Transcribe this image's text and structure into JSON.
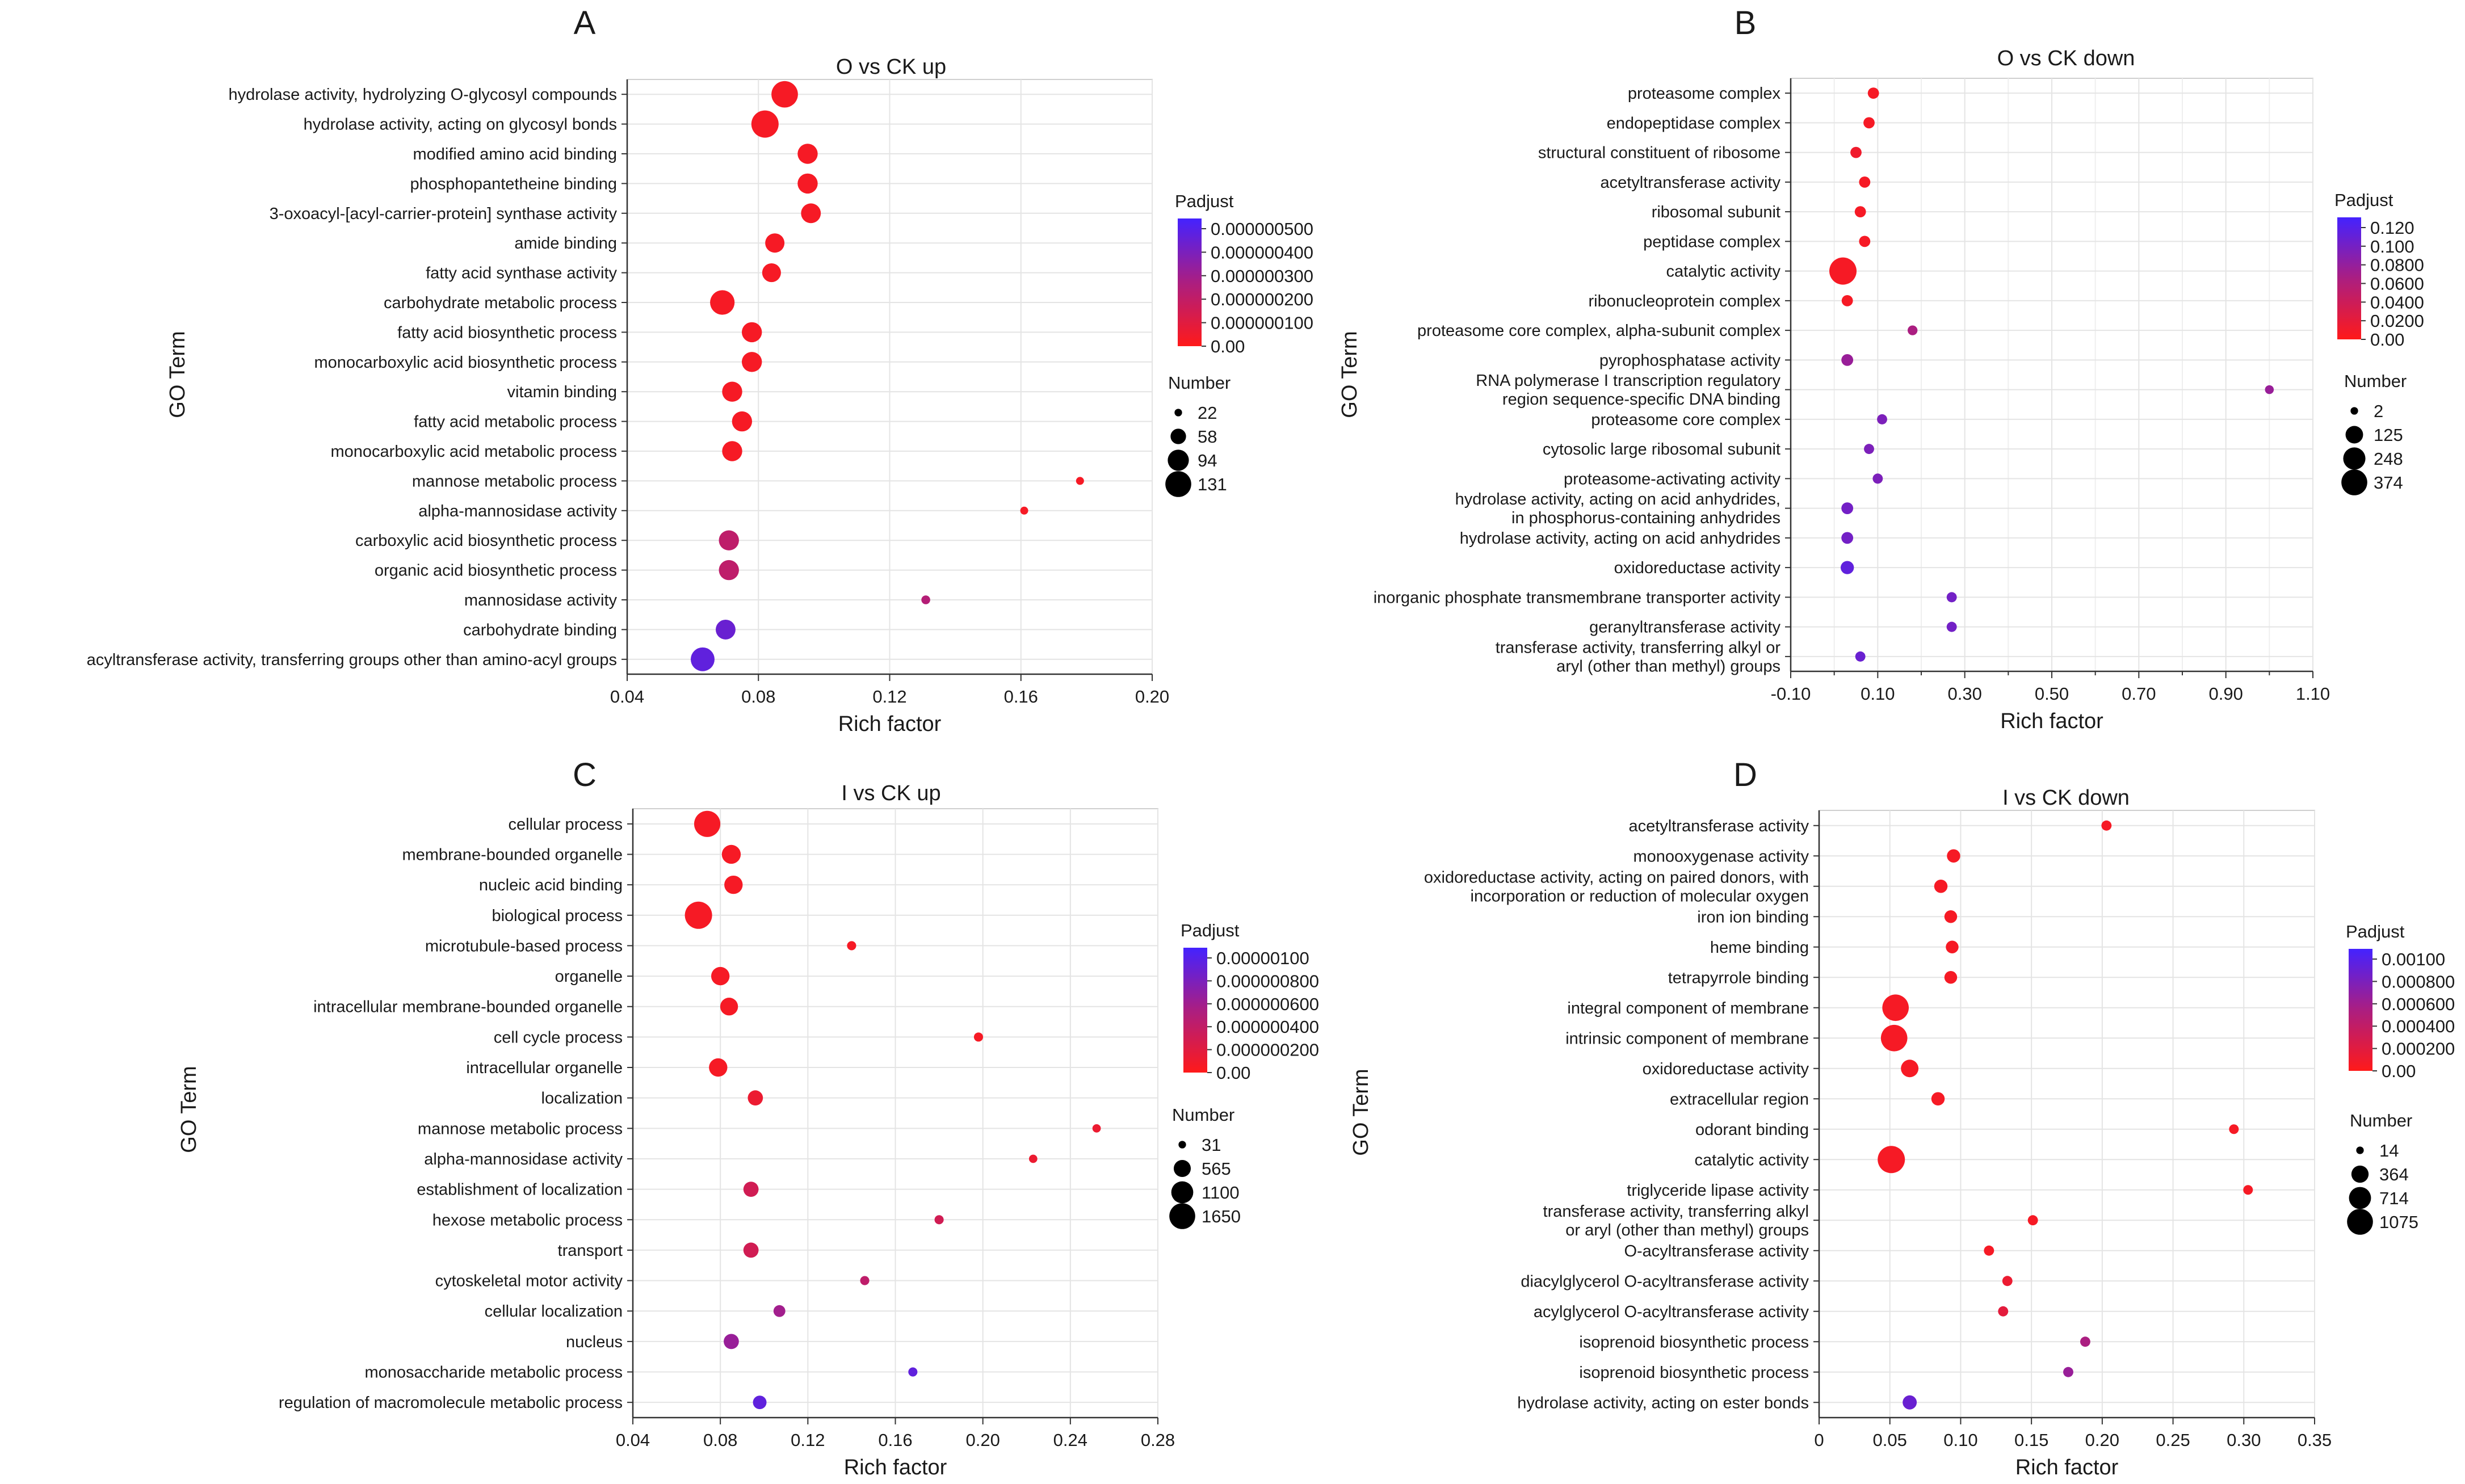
{
  "chart_data": [
    {
      "type": "scatter",
      "panel_letter": "A",
      "title": "O vs CK up",
      "xlabel": "Rich factor",
      "ylabel": "GO Term",
      "xlim": [
        0.04,
        0.2
      ],
      "xticks": [
        "0.04",
        "0.08",
        "0.12",
        "0.16",
        "0.20"
      ],
      "xtick_values": [
        0.04,
        0.08,
        0.12,
        0.16,
        0.2
      ],
      "grid": true,
      "color_legend": {
        "title": "Padjust",
        "labels": [
          "0.000000500",
          "0.000000400",
          "0.000000300",
          "0.000000200",
          "0.000000100",
          "0.00"
        ],
        "high_color": "#4422ff",
        "low_color": "#ff1a1a"
      },
      "size_legend": {
        "title": "Number",
        "labels": [
          "22",
          "58",
          "94",
          "131"
        ],
        "values": [
          22,
          58,
          94,
          131
        ]
      },
      "terms": [
        "hydrolase activity, hydrolyzing O-glycosyl compounds",
        "hydrolase activity, acting on glycosyl bonds",
        "modified amino acid binding",
        "phosphopantetheine binding",
        "3-oxoacyl-[acyl-carrier-protein] synthase activity",
        "amide binding",
        "fatty acid synthase activity",
        "carbohydrate metabolic process",
        "fatty acid biosynthetic process",
        "monocarboxylic acid biosynthetic process",
        "vitamin binding",
        "fatty acid metabolic process",
        "monocarboxylic acid metabolic process",
        "mannose metabolic process",
        "alpha-mannosidase activity",
        "carboxylic acid biosynthetic process",
        "organic acid biosynthetic process",
        "mannosidase activity",
        "carbohydrate binding",
        "acyltransferase activity, transferring groups other than amino-acyl groups"
      ],
      "rich_factor": [
        0.088,
        0.082,
        0.095,
        0.095,
        0.096,
        0.085,
        0.084,
        0.069,
        0.078,
        0.078,
        0.072,
        0.075,
        0.072,
        0.178,
        0.161,
        0.071,
        0.071,
        0.131,
        0.07,
        0.063
      ],
      "number": [
        125,
        131,
        80,
        80,
        78,
        75,
        72,
        110,
        80,
        80,
        80,
        80,
        80,
        22,
        22,
        80,
        80,
        25,
        78,
        105
      ],
      "padjust_fraction": [
        0.05,
        0.05,
        0.05,
        0.05,
        0.05,
        0.05,
        0.05,
        0.05,
        0.05,
        0.05,
        0.05,
        0.05,
        0.05,
        0.05,
        0.05,
        0.35,
        0.35,
        0.4,
        0.8,
        0.85
      ]
    },
    {
      "type": "scatter",
      "panel_letter": "B",
      "title": "O vs CK down",
      "xlabel": "Rich factor",
      "ylabel": "GO Term",
      "xlim": [
        -0.1,
        1.1
      ],
      "xticks": [
        "-0.10",
        "0.10",
        "0.30",
        "0.50",
        "0.70",
        "0.90",
        "1.10"
      ],
      "xtick_values": [
        -0.1,
        0.1,
        0.3,
        0.5,
        0.7,
        0.9,
        1.1
      ],
      "minor_ticks": true,
      "grid": true,
      "color_legend": {
        "title": "Padjust",
        "labels": [
          "0.120",
          "0.100",
          "0.0800",
          "0.0600",
          "0.0400",
          "0.0200",
          "0.00"
        ],
        "high_color": "#4422ff",
        "low_color": "#ff1a1a"
      },
      "size_legend": {
        "title": "Number",
        "labels": [
          "2",
          "125",
          "248",
          "374"
        ],
        "values": [
          2,
          125,
          248,
          374
        ]
      },
      "terms": [
        "proteasome complex",
        "endopeptidase complex",
        "structural constituent of ribosome",
        "acetyltransferase activity",
        "ribosomal subunit",
        "peptidase complex",
        "catalytic activity",
        "ribonucleoprotein complex",
        "proteasome core complex, alpha-subunit complex",
        "pyrophosphatase activity",
        [
          "RNA polymerase I transcription regulatory",
          "region sequence-specific DNA binding"
        ],
        "proteasome core complex",
        "cytosolic large ribosomal subunit",
        "proteasome-activating activity",
        [
          "hydrolase activity, acting on acid anhydrides,",
          "in phosphorus-containing anhydrides"
        ],
        "hydrolase activity, acting on acid anhydrides",
        "oxidoreductase activity",
        "inorganic phosphate transmembrane transporter activity",
        "geranyltransferase activity",
        [
          "transferase activity, transferring alkyl or",
          "aryl (other than methyl) groups"
        ]
      ],
      "rich_factor": [
        0.09,
        0.08,
        0.05,
        0.07,
        0.06,
        0.07,
        0.02,
        0.03,
        0.18,
        0.03,
        1.0,
        0.11,
        0.08,
        0.1,
        0.03,
        0.03,
        0.03,
        0.27,
        0.27,
        0.06
      ],
      "number": [
        20,
        20,
        20,
        20,
        20,
        20,
        374,
        20,
        10,
        25,
        5,
        12,
        12,
        12,
        25,
        25,
        40,
        12,
        12,
        12
      ],
      "padjust_fraction": [
        0.05,
        0.05,
        0.08,
        0.05,
        0.05,
        0.05,
        0.05,
        0.05,
        0.45,
        0.55,
        0.55,
        0.7,
        0.7,
        0.7,
        0.75,
        0.75,
        0.85,
        0.75,
        0.75,
        0.8
      ]
    },
    {
      "type": "scatter",
      "panel_letter": "C",
      "title": "I vs CK up",
      "xlabel": "Rich factor",
      "ylabel": "GO Term",
      "xlim": [
        0.04,
        0.28
      ],
      "xticks": [
        "0.04",
        "0.08",
        "0.12",
        "0.16",
        "0.20",
        "0.24",
        "0.28"
      ],
      "xtick_values": [
        0.04,
        0.08,
        0.12,
        0.16,
        0.2,
        0.24,
        0.28
      ],
      "grid": true,
      "color_legend": {
        "title": "Padjust",
        "labels": [
          "0.00000100",
          "0.000000800",
          "0.000000600",
          "0.000000400",
          "0.000000200",
          "0.00"
        ],
        "high_color": "#4422ff",
        "low_color": "#ff1a1a"
      },
      "size_legend": {
        "title": "Number",
        "labels": [
          "31",
          "565",
          "1100",
          "1650"
        ],
        "values": [
          31,
          565,
          1100,
          1650
        ]
      },
      "terms": [
        "cellular process",
        "membrane-bounded organelle",
        "nucleic acid binding",
        "biological process",
        "microtubule-based process",
        "organelle",
        "intracellular membrane-bounded organelle",
        "cell cycle process",
        "intracellular organelle",
        "localization",
        "mannose metabolic process",
        "alpha-mannosidase activity",
        "establishment of localization",
        "hexose metabolic process",
        "transport",
        "cytoskeletal motor activity",
        "cellular localization",
        "nucleus",
        "monosaccharide metabolic process",
        "regulation of macromolecule metabolic process"
      ],
      "rich_factor": [
        0.074,
        0.085,
        0.086,
        0.07,
        0.14,
        0.08,
        0.084,
        0.198,
        0.079,
        0.096,
        0.252,
        0.223,
        0.094,
        0.18,
        0.094,
        0.146,
        0.107,
        0.085,
        0.168,
        0.098
      ],
      "number": [
        1500,
        650,
        600,
        1650,
        60,
        600,
        550,
        60,
        600,
        350,
        40,
        40,
        350,
        60,
        350,
        60,
        160,
        350,
        60,
        250
      ],
      "padjust_fraction": [
        0.05,
        0.05,
        0.05,
        0.05,
        0.05,
        0.05,
        0.05,
        0.05,
        0.05,
        0.1,
        0.1,
        0.1,
        0.25,
        0.25,
        0.25,
        0.35,
        0.5,
        0.55,
        0.85,
        0.85
      ]
    },
    {
      "type": "scatter",
      "panel_letter": "D",
      "title": "I vs CK down",
      "xlabel": "Rich factor",
      "ylabel": "GO Term",
      "xlim": [
        0,
        0.35
      ],
      "xticks": [
        "0",
        "0.05",
        "0.10",
        "0.15",
        "0.20",
        "0.25",
        "0.30",
        "0.35"
      ],
      "xtick_values": [
        0,
        0.05,
        0.1,
        0.15,
        0.2,
        0.25,
        0.3,
        0.35
      ],
      "grid": true,
      "color_legend": {
        "title": "Padjust",
        "labels": [
          "0.00100",
          "0.000800",
          "0.000600",
          "0.000400",
          "0.000200",
          "0.00"
        ],
        "high_color": "#4422ff",
        "low_color": "#ff1a1a"
      },
      "size_legend": {
        "title": "Number",
        "labels": [
          "14",
          "364",
          "714",
          "1075"
        ],
        "values": [
          14,
          364,
          714,
          1075
        ]
      },
      "terms": [
        "acetyltransferase activity",
        "monooxygenase activity",
        [
          "oxidoreductase activity, acting on paired donors, with",
          "incorporation or reduction of molecular oxygen"
        ],
        "iron ion binding",
        "heme binding",
        "tetrapyrrole binding",
        "integral component of membrane",
        "intrinsic component of membrane",
        "oxidoreductase activity",
        "extracellular region",
        "odorant binding",
        "catalytic activity",
        "triglyceride lipase activity",
        [
          "transferase activity, transferring alkyl",
          "or aryl (other than methyl) groups"
        ],
        "O-acyltransferase activity",
        "diacylglycerol O-acyltransferase activity",
        "acylglycerol O-acyltransferase activity",
        "isoprenoid biosynthetic process",
        "isoprenoid biosynthetic process",
        "hydrolase activity, acting on ester bonds"
      ],
      "rich_factor": [
        0.203,
        0.095,
        0.086,
        0.093,
        0.094,
        0.093,
        0.054,
        0.053,
        0.064,
        0.084,
        0.293,
        0.051,
        0.303,
        0.151,
        0.12,
        0.133,
        0.13,
        0.188,
        0.176,
        0.064
      ],
      "number": [
        50,
        140,
        140,
        120,
        120,
        120,
        1000,
        1000,
        330,
        140,
        40,
        1075,
        40,
        50,
        50,
        50,
        50,
        50,
        50,
        170
      ],
      "padjust_fraction": [
        0.05,
        0.05,
        0.05,
        0.05,
        0.05,
        0.05,
        0.05,
        0.05,
        0.05,
        0.05,
        0.05,
        0.05,
        0.05,
        0.05,
        0.05,
        0.1,
        0.15,
        0.45,
        0.55,
        0.8
      ]
    }
  ]
}
